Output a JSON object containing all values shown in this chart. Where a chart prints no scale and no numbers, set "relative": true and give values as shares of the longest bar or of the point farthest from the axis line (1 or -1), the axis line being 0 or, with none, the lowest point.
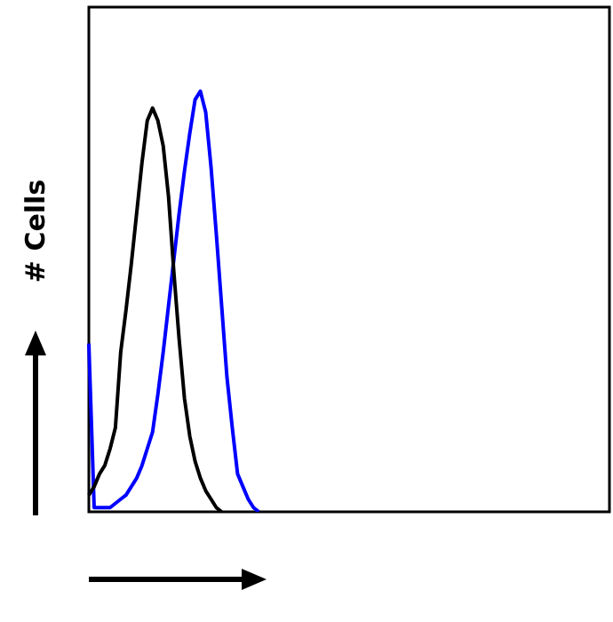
{
  "chart_data": {
    "type": "line",
    "ylabel": "# Cells",
    "relative": true,
    "categories": [
      null,
      null,
      null,
      null,
      null,
      null,
      null,
      null,
      null,
      null,
      null,
      null,
      null,
      null,
      null,
      null,
      null,
      null,
      null,
      null,
      null,
      null,
      null,
      null,
      null,
      null,
      null,
      null,
      null,
      null,
      null,
      null,
      null,
      null,
      null,
      null,
      null,
      null,
      null,
      null,
      null,
      null,
      null,
      null,
      null,
      null,
      null,
      null,
      null,
      null,
      null,
      null,
      null,
      null,
      null,
      null,
      null,
      null,
      null,
      null,
      null,
      null,
      null,
      null,
      null,
      null,
      null,
      null,
      null,
      null,
      null,
      null,
      null,
      null,
      null,
      null,
      null,
      null,
      null,
      null,
      null,
      null,
      null,
      null,
      null,
      null,
      null,
      null,
      null,
      null,
      null,
      null,
      null,
      null,
      null,
      null,
      null,
      null,
      null
    ],
    "series": [
      {
        "color": "#000000",
        "values": [
          0.04,
          0.06,
          0.09,
          0.11,
          0.15,
          0.2,
          0.38,
          0.48,
          0.59,
          0.71,
          0.83,
          0.93,
          0.96,
          0.93,
          0.87,
          0.75,
          0.57,
          0.41,
          0.27,
          0.18,
          0.12,
          0.08,
          0.05,
          0.03,
          0.01,
          0,
          null,
          null,
          null,
          null,
          null,
          null,
          null,
          null,
          null,
          null,
          null,
          null,
          null,
          null,
          null,
          null,
          null,
          null,
          null,
          null,
          null,
          null,
          null,
          null,
          null,
          null,
          null,
          null,
          null,
          null,
          null,
          null,
          null,
          null,
          null,
          null,
          null,
          null,
          null,
          null,
          null,
          null,
          null,
          null,
          null,
          null,
          null,
          null,
          null,
          null,
          null,
          null,
          null,
          null,
          null,
          null,
          null,
          null,
          null,
          null,
          null,
          null,
          null,
          null,
          null,
          null,
          null,
          null,
          null,
          null,
          null,
          null,
          null
        ]
      },
      {
        "color": "#0000ff",
        "values": [
          0.4,
          0.01,
          0.01,
          0.01,
          0.01,
          0.02,
          0.03,
          0.04,
          0.06,
          0.08,
          0.11,
          0.15,
          0.19,
          0.28,
          0.38,
          0.49,
          0.6,
          0.71,
          0.81,
          0.9,
          0.98,
          1,
          0.95,
          0.82,
          0.66,
          0.49,
          0.32,
          0.2,
          0.09,
          0.06,
          0.03,
          0.01,
          0,
          null,
          null,
          null,
          null,
          null,
          null,
          null,
          null,
          null,
          null,
          null,
          null,
          null,
          null,
          null,
          null,
          null,
          null,
          null,
          null,
          null,
          null,
          null,
          null,
          null,
          null,
          null,
          null,
          null,
          null,
          null,
          null,
          null,
          null,
          null,
          null,
          null,
          null,
          null,
          null,
          null,
          null,
          null,
          null,
          null,
          null,
          null,
          null,
          null,
          null,
          null,
          null,
          null,
          null,
          null,
          null,
          null,
          null,
          null,
          null,
          null,
          null,
          null,
          null,
          null,
          null
        ]
      }
    ]
  }
}
